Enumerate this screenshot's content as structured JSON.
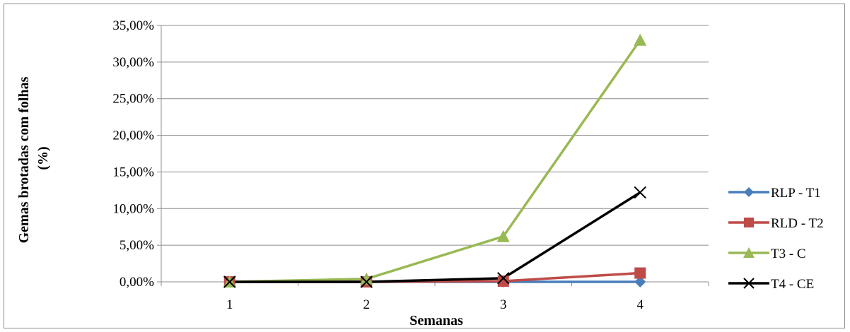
{
  "chart_data": {
    "type": "line",
    "title": "",
    "xlabel": "Semanas",
    "ylabel": "Gemas brotadas com folhas (%)",
    "ylabel_lines": [
      "Gemas brotadas com folhas",
      "(%)"
    ],
    "categories": [
      "1",
      "2",
      "3",
      "4"
    ],
    "ylim": [
      0,
      0.35
    ],
    "yticks": [
      0,
      0.05,
      0.1,
      0.15,
      0.2,
      0.25,
      0.3,
      0.35
    ],
    "ytick_labels": [
      "0,00%",
      "5,00%",
      "10,00%",
      "15,00%",
      "20,00%",
      "25,00%",
      "30,00%",
      "35,00%"
    ],
    "grid": true,
    "legend_position": "right",
    "series": [
      {
        "name": "RLP - T1",
        "values": [
          0,
          0,
          0,
          0
        ],
        "color": "#4a7ebb",
        "marker": "diamond"
      },
      {
        "name": "RLD - T2",
        "values": [
          0,
          0,
          0.001,
          0.012
        ],
        "color": "#be4b48",
        "marker": "square"
      },
      {
        "name": "T3 - C",
        "values": [
          0,
          0.004,
          0.062,
          0.33
        ],
        "color": "#98b954",
        "marker": "triangle"
      },
      {
        "name": "T4 - CE",
        "values": [
          0,
          0,
          0.005,
          0.122
        ],
        "color": "#000000",
        "marker": "x"
      }
    ]
  }
}
